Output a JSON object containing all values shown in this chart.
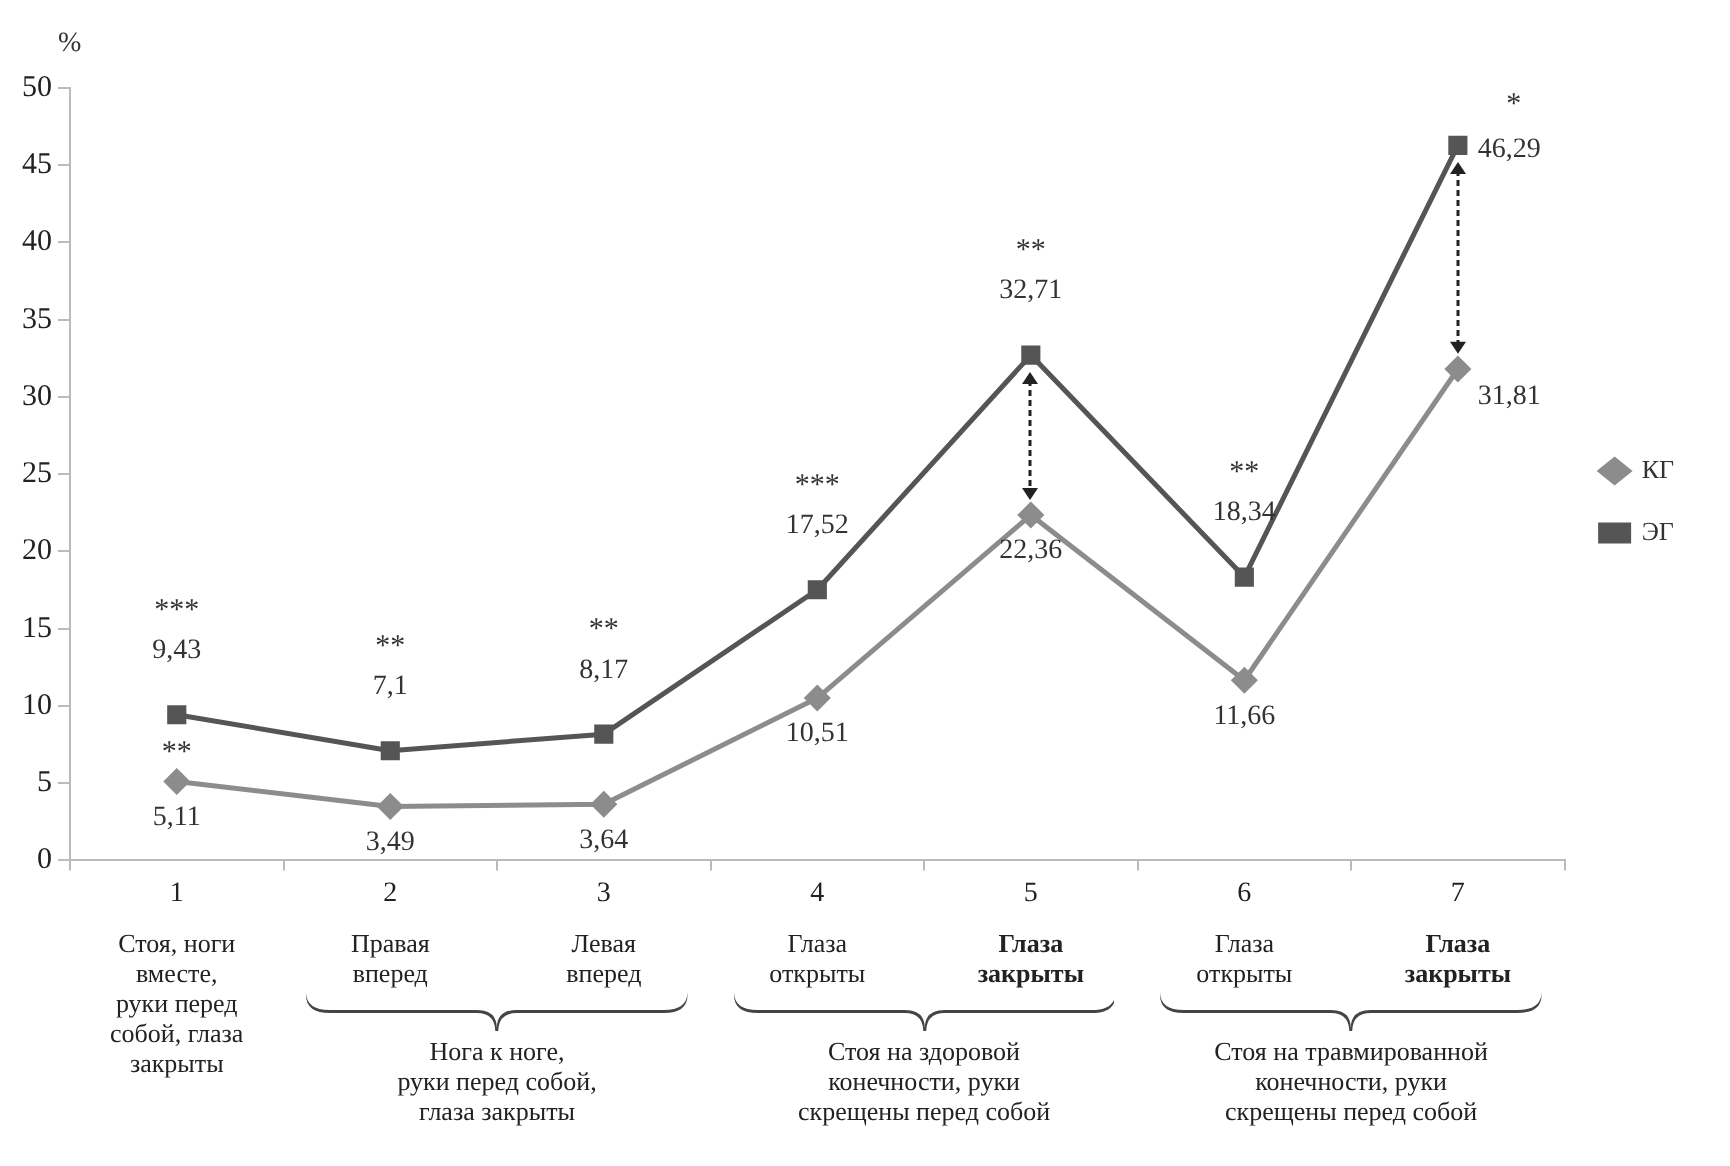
{
  "chart_data": {
    "type": "line",
    "ylabel": "%",
    "categories": [
      "1",
      "2",
      "3",
      "4",
      "5",
      "6",
      "7"
    ],
    "series": [
      {
        "name": "КГ",
        "color": "#8c8c8c",
        "marker": "diamond",
        "values": [
          5.11,
          3.49,
          3.64,
          10.51,
          22.36,
          11.66,
          31.81
        ],
        "value_labels": [
          "5,11",
          "3,49",
          "3,64",
          "10,51",
          "22,36",
          "11,66",
          "31,81"
        ]
      },
      {
        "name": "ЭГ",
        "color": "#555555",
        "marker": "square",
        "values": [
          9.43,
          7.1,
          8.17,
          17.52,
          32.71,
          18.34,
          46.29
        ],
        "value_labels": [
          "9,43",
          "7,1",
          "8,17",
          "17,52",
          "32,71",
          "18,34",
          "46,29"
        ]
      }
    ],
    "ylim": [
      0,
      50
    ],
    "yticks": [
      0,
      5,
      10,
      15,
      20,
      25,
      30,
      35,
      40,
      45,
      50
    ],
    "grid": false,
    "legend": "right",
    "line_style": "solid",
    "annotations": [
      {
        "text": "***",
        "x": "1",
        "y": 9.43
      },
      {
        "text": "**",
        "x": "1",
        "y": 5.11
      },
      {
        "text": "**",
        "x": "2",
        "y": 7.1
      },
      {
        "text": "**",
        "x": "3",
        "y": 8.17
      },
      {
        "text": "***",
        "x": "4",
        "y": 17.52
      },
      {
        "text": "**",
        "x": "5",
        "y": 32.71
      },
      {
        "text": "**",
        "x": "6",
        "y": 18.34
      },
      {
        "text": "*",
        "x": "7",
        "y": 46.29
      },
      "Стоя, ноги\nвместе,\nруки перед\nсобой, глаза\nзакрыты",
      "Правая\nвперед",
      "Левая\nвперед",
      "Глаза\nоткрыты",
      "Глаза\nзакрыты",
      "Глаза\nоткрыты",
      "Глаза\nзакрыты",
      "Нога к ноге,\nруки перед собой,\nглаза закрыты",
      "Стоя на здоровой\nконечности, руки\nскрещены перед собой",
      "Стоя на травмированной\nконечности, руки\nскрещены перед собой"
    ]
  }
}
